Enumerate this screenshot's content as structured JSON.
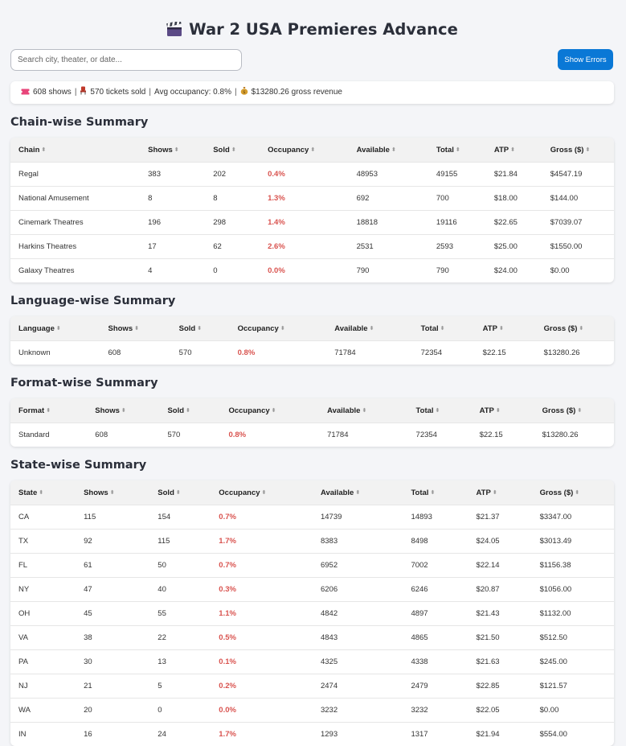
{
  "title": "War 2 USA Premieres Advance",
  "search": {
    "placeholder": "Search city, theater, or date..."
  },
  "show_errors_label": "Show Errors",
  "stats": {
    "shows": "608 shows",
    "tickets": "570 tickets sold",
    "occupancy": "Avg occupancy: 0.8%",
    "gross": "$13280.26 gross revenue"
  },
  "colors": {
    "accent": "#0a78d6",
    "occupancy": "#d9534f"
  },
  "sections": [
    {
      "title": "Chain-wise Summary",
      "columns": [
        "Chain",
        "Shows",
        "Sold",
        "Occupancy",
        "Available",
        "Total",
        "ATP",
        "Gross ($)"
      ],
      "widths": [
        159,
        80,
        67,
        109,
        98,
        71,
        69,
        88
      ],
      "rows": [
        [
          "Regal",
          "383",
          "202",
          "0.4%",
          "48953",
          "49155",
          "$21.84",
          "$4547.19"
        ],
        [
          "National Amusement",
          "8",
          "8",
          "1.3%",
          "692",
          "700",
          "$18.00",
          "$144.00"
        ],
        [
          "Cinemark Theatres",
          "196",
          "298",
          "1.4%",
          "18818",
          "19116",
          "$22.65",
          "$7039.07"
        ],
        [
          "Harkins Theatres",
          "17",
          "62",
          "2.6%",
          "2531",
          "2593",
          "$25.00",
          "$1550.00"
        ],
        [
          "Galaxy Theatres",
          "4",
          "0",
          "0.0%",
          "790",
          "790",
          "$24.00",
          "$0.00"
        ]
      ]
    },
    {
      "title": "Language-wise Summary",
      "columns": [
        "Language",
        "Shows",
        "Sold",
        "Occupancy",
        "Available",
        "Total",
        "ATP",
        "Gross ($)"
      ],
      "widths": [
        110,
        87,
        72,
        119,
        106,
        76,
        75,
        96
      ],
      "rows": [
        [
          "Unknown",
          "608",
          "570",
          "0.8%",
          "71784",
          "72354",
          "$22.15",
          "$13280.26"
        ]
      ]
    },
    {
      "title": "Format-wise Summary",
      "columns": [
        "Format",
        "Shows",
        "Sold",
        "Occupancy",
        "Available",
        "Total",
        "ATP",
        "Gross ($)"
      ],
      "widths": [
        94,
        89,
        75,
        121,
        109,
        78,
        77,
        98
      ],
      "rows": [
        [
          "Standard",
          "608",
          "570",
          "0.8%",
          "71784",
          "72354",
          "$22.15",
          "$13280.26"
        ]
      ]
    },
    {
      "title": "State-wise Summary",
      "columns": [
        "State",
        "Shows",
        "Sold",
        "Occupancy",
        "Available",
        "Total",
        "ATP",
        "Gross ($)"
      ],
      "widths": [
        80,
        91,
        75,
        125,
        111,
        80,
        78,
        101
      ],
      "rows": [
        [
          "CA",
          "115",
          "154",
          "0.7%",
          "14739",
          "14893",
          "$21.37",
          "$3347.00"
        ],
        [
          "TX",
          "92",
          "115",
          "1.7%",
          "8383",
          "8498",
          "$24.05",
          "$3013.49"
        ],
        [
          "FL",
          "61",
          "50",
          "0.7%",
          "6952",
          "7002",
          "$22.14",
          "$1156.38"
        ],
        [
          "NY",
          "47",
          "40",
          "0.3%",
          "6206",
          "6246",
          "$20.87",
          "$1056.00"
        ],
        [
          "OH",
          "45",
          "55",
          "1.1%",
          "4842",
          "4897",
          "$21.43",
          "$1132.00"
        ],
        [
          "VA",
          "38",
          "22",
          "0.5%",
          "4843",
          "4865",
          "$21.50",
          "$512.50"
        ],
        [
          "PA",
          "30",
          "13",
          "0.1%",
          "4325",
          "4338",
          "$21.63",
          "$245.00"
        ],
        [
          "NJ",
          "21",
          "5",
          "0.2%",
          "2474",
          "2479",
          "$22.85",
          "$121.57"
        ],
        [
          "WA",
          "20",
          "0",
          "0.0%",
          "3232",
          "3232",
          "$22.05",
          "$0.00"
        ],
        [
          "IN",
          "16",
          "24",
          "1.7%",
          "1293",
          "1317",
          "$21.94",
          "$554.00"
        ]
      ]
    }
  ]
}
